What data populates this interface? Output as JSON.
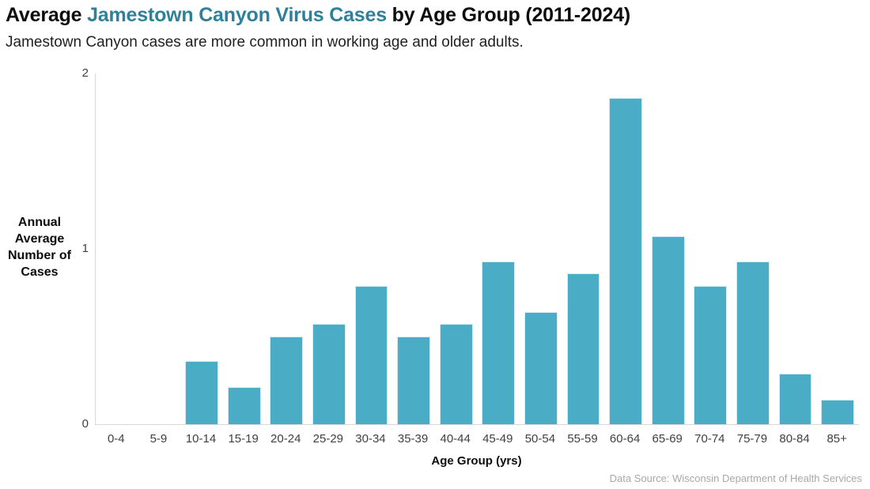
{
  "header": {
    "title_prefix": "Average ",
    "title_highlight": "Jamestown Canyon Virus Cases",
    "title_suffix": " by Age Group (2011-2024)",
    "subtitle": "Jamestown Canyon cases are more common in working age and older adults."
  },
  "chart_data": {
    "type": "bar",
    "title": "Average Jamestown Canyon Virus Cases by Age Group (2011-2024)",
    "subtitle": "Jamestown Canyon cases are more common in working age and older adults.",
    "categories": [
      "0-4",
      "5-9",
      "10-14",
      "15-19",
      "20-24",
      "25-29",
      "30-34",
      "35-39",
      "40-44",
      "45-49",
      "50-54",
      "55-59",
      "60-64",
      "65-69",
      "70-74",
      "75-79",
      "80-84",
      "85+"
    ],
    "values": [
      0,
      0,
      0.36,
      0.21,
      0.5,
      0.57,
      0.79,
      0.5,
      0.57,
      0.93,
      0.64,
      0.86,
      1.86,
      1.07,
      0.79,
      0.93,
      0.29,
      0.14
    ],
    "xlabel": "Age Group (yrs)",
    "ylabel": "Annual Average Number of Cases",
    "ylabel_lines": [
      "Annual",
      "Average",
      "Number of",
      "Cases"
    ],
    "y_ticks": [
      0,
      1,
      2
    ],
    "ylim": [
      0,
      2
    ],
    "grid": false,
    "legend": false,
    "bar_color": "#4AACC5",
    "bar_border_color": "#D5ECF2"
  },
  "footer": {
    "source": "Data Source: Wisconsin Department of Health Services"
  },
  "colors": {
    "accent_text": "#2E809B",
    "axis_line": "#D9D9D9",
    "tick_text": "#404040",
    "source_text": "#A8A8A8"
  }
}
